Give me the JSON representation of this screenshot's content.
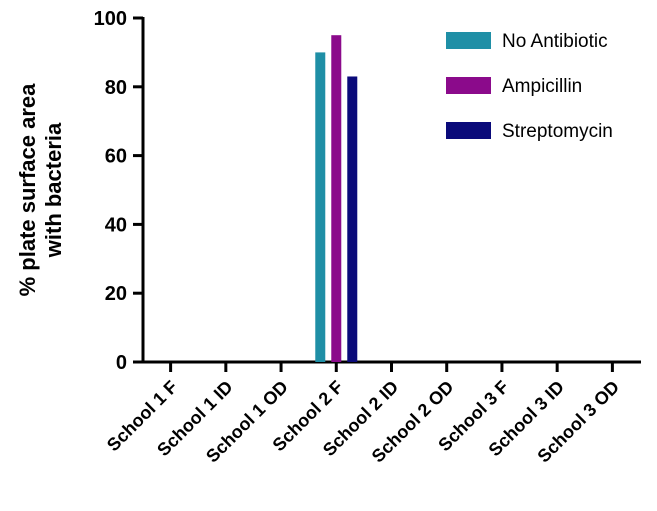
{
  "chart_data": {
    "type": "bar",
    "ylabel_lines": [
      "% plate surface area",
      "with bacteria"
    ],
    "xlabel": "",
    "ylim": [
      0,
      100
    ],
    "yticks": [
      0,
      20,
      40,
      60,
      80,
      100
    ],
    "grid": false,
    "legend_position": "top-right",
    "categories": [
      "School 1 F",
      "School 1 ID",
      "School 1 OD",
      "School 2 F",
      "School 2 ID",
      "School 2 OD",
      "School 3 F",
      "School 3 ID",
      "School 3 OD"
    ],
    "series": [
      {
        "name": "No Antibiotic",
        "color": "#1f8fa6",
        "values": [
          0,
          0,
          0,
          90,
          0,
          0,
          0,
          0,
          0
        ]
      },
      {
        "name": "Ampicillin",
        "color": "#8b0a8b",
        "values": [
          0,
          0,
          0,
          95,
          0,
          0,
          0,
          0,
          0
        ]
      },
      {
        "name": "Streptomycin",
        "color": "#0a0a7a",
        "values": [
          0,
          0,
          0,
          83,
          0,
          0,
          0,
          0,
          0
        ]
      }
    ]
  }
}
